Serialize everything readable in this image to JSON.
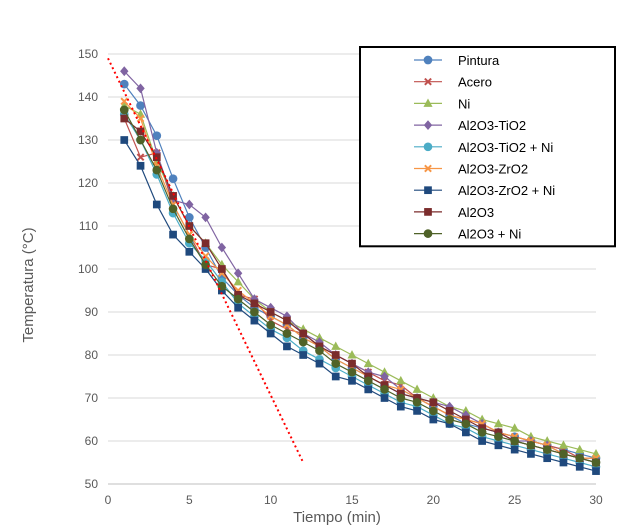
{
  "chart_data": {
    "type": "line",
    "title": "",
    "xlabel": "Tiempo  (min)",
    "ylabel": "Temperatura  (°C)",
    "xlim": [
      0,
      30
    ],
    "ylim": [
      50,
      150
    ],
    "xticks": [
      0,
      5,
      10,
      15,
      20,
      25,
      30
    ],
    "yticks": [
      50,
      60,
      70,
      80,
      90,
      100,
      110,
      120,
      130,
      140,
      150
    ],
    "grid": "horizontal",
    "legend_position": "top-right",
    "series": [
      {
        "name": "Pintura",
        "color": "#4f81bd",
        "marker": "circle",
        "x": [
          1,
          2,
          3,
          4,
          5,
          6,
          7,
          8,
          9,
          10,
          11,
          12,
          13,
          14,
          15,
          16,
          17,
          18,
          19,
          20,
          21,
          22,
          23,
          24,
          25,
          26,
          27,
          28,
          29,
          30
        ],
        "values": [
          143,
          138,
          131,
          121,
          112,
          105,
          98,
          94,
          91,
          89,
          87,
          84,
          82,
          79,
          77,
          75,
          73,
          71,
          70,
          68,
          66,
          64,
          63,
          62,
          61,
          60,
          59,
          58,
          57,
          56
        ]
      },
      {
        "name": "Acero",
        "color": "#c0504d",
        "marker": "x",
        "x": [
          1,
          2,
          3,
          4,
          5,
          6,
          7,
          8,
          9,
          10,
          11,
          12,
          13,
          14,
          15,
          16,
          17,
          18,
          19,
          20,
          21,
          22,
          23,
          24,
          25,
          26,
          27,
          28,
          29,
          30
        ],
        "values": [
          135,
          126,
          127,
          115,
          108,
          101,
          100,
          94,
          93,
          88,
          86,
          85,
          82,
          80,
          78,
          76,
          74,
          73,
          70,
          68,
          66,
          65,
          64,
          62,
          61,
          60,
          59,
          58,
          56,
          56
        ]
      },
      {
        "name": "Ni",
        "color": "#9bbb59",
        "marker": "triangle",
        "x": [
          1,
          2,
          3,
          4,
          5,
          6,
          7,
          8,
          9,
          10,
          11,
          12,
          13,
          14,
          15,
          16,
          17,
          18,
          19,
          20,
          21,
          22,
          23,
          24,
          25,
          26,
          27,
          28,
          29,
          30
        ],
        "values": [
          138,
          136,
          125,
          117,
          110,
          106,
          101,
          97,
          93,
          90,
          88,
          86,
          84,
          82,
          80,
          78,
          76,
          74,
          72,
          70,
          68,
          67,
          65,
          64,
          63,
          61,
          60,
          59,
          58,
          57
        ]
      },
      {
        "name": "Al2O3-TiO2",
        "color": "#8064a2",
        "marker": "diamond",
        "x": [
          1,
          2,
          3,
          4,
          5,
          6,
          7,
          8,
          9,
          10,
          11,
          12,
          13,
          14,
          15,
          16,
          17,
          18,
          19,
          20,
          21,
          22,
          23,
          24,
          25,
          26,
          27,
          28,
          29,
          30
        ],
        "values": [
          146,
          142,
          127,
          116,
          115,
          112,
          105,
          99,
          93,
          91,
          89,
          85,
          83,
          80,
          78,
          76,
          75,
          72,
          70,
          69,
          68,
          66,
          64,
          62,
          60,
          60,
          59,
          57,
          56,
          55
        ]
      },
      {
        "name": "Al2O3-TiO2 + Ni",
        "color": "#4bacc6",
        "marker": "circle",
        "x": [
          1,
          2,
          3,
          4,
          5,
          6,
          7,
          8,
          9,
          10,
          11,
          12,
          13,
          14,
          15,
          16,
          17,
          18,
          19,
          20,
          21,
          22,
          23,
          24,
          25,
          26,
          27,
          28,
          29,
          30
        ],
        "values": [
          136,
          130,
          122,
          113,
          106,
          102,
          97,
          92,
          89,
          86,
          84,
          81,
          79,
          77,
          75,
          73,
          71,
          69,
          68,
          66,
          64,
          63,
          61,
          60,
          59,
          58,
          57,
          56,
          55,
          54
        ]
      },
      {
        "name": "Al2O3-ZrO2",
        "color": "#f79646",
        "marker": "x",
        "x": [
          1,
          2,
          3,
          4,
          5,
          6,
          7,
          8,
          9,
          10,
          11,
          12,
          13,
          14,
          15,
          16,
          17,
          18,
          19,
          20,
          21,
          22,
          23,
          24,
          25,
          26,
          27,
          28,
          29,
          30
        ],
        "values": [
          139,
          135,
          124,
          115,
          108,
          103,
          99,
          95,
          92,
          89,
          87,
          84,
          82,
          79,
          77,
          75,
          73,
          72,
          70,
          68,
          66,
          65,
          64,
          62,
          61,
          60,
          59,
          57,
          56,
          56
        ]
      },
      {
        "name": "Al2O3-ZrO2 + Ni",
        "color": "#1f497d",
        "marker": "square",
        "x": [
          1,
          2,
          3,
          4,
          5,
          6,
          7,
          8,
          9,
          10,
          11,
          12,
          13,
          14,
          15,
          16,
          17,
          18,
          19,
          20,
          21,
          22,
          23,
          24,
          25,
          26,
          27,
          28,
          29,
          30
        ],
        "values": [
          130,
          124,
          115,
          108,
          104,
          100,
          95,
          91,
          88,
          85,
          82,
          80,
          78,
          75,
          74,
          72,
          70,
          68,
          67,
          65,
          64,
          62,
          60,
          59,
          58,
          57,
          56,
          55,
          54,
          53
        ]
      },
      {
        "name": "Al2O3",
        "color": "#7b2c2c",
        "marker": "square",
        "x": [
          1,
          2,
          3,
          4,
          5,
          6,
          7,
          8,
          9,
          10,
          11,
          12,
          13,
          14,
          15,
          16,
          17,
          18,
          19,
          20,
          21,
          22,
          23,
          24,
          25,
          26,
          27,
          28,
          29,
          30
        ],
        "values": [
          135,
          132,
          126,
          117,
          110,
          106,
          100,
          94,
          92,
          90,
          88,
          85,
          82,
          80,
          78,
          75,
          73,
          71,
          70,
          69,
          67,
          65,
          63,
          62,
          60,
          59,
          58,
          57,
          56,
          55
        ]
      },
      {
        "name": "Al2O3 + Ni",
        "color": "#4f6228",
        "marker": "circle",
        "x": [
          1,
          2,
          3,
          4,
          5,
          6,
          7,
          8,
          9,
          10,
          11,
          12,
          13,
          14,
          15,
          16,
          17,
          18,
          19,
          20,
          21,
          22,
          23,
          24,
          25,
          26,
          27,
          28,
          29,
          30
        ],
        "values": [
          137,
          130,
          123,
          114,
          107,
          101,
          96,
          93,
          90,
          87,
          85,
          83,
          81,
          78,
          76,
          74,
          72,
          70,
          69,
          67,
          65,
          64,
          62,
          61,
          60,
          59,
          58,
          57,
          56,
          55
        ]
      }
    ],
    "annotations": [
      {
        "type": "dotted-trend-line",
        "color": "#ff0000",
        "from": [
          0,
          149
        ],
        "to": [
          12,
          55
        ]
      }
    ]
  }
}
